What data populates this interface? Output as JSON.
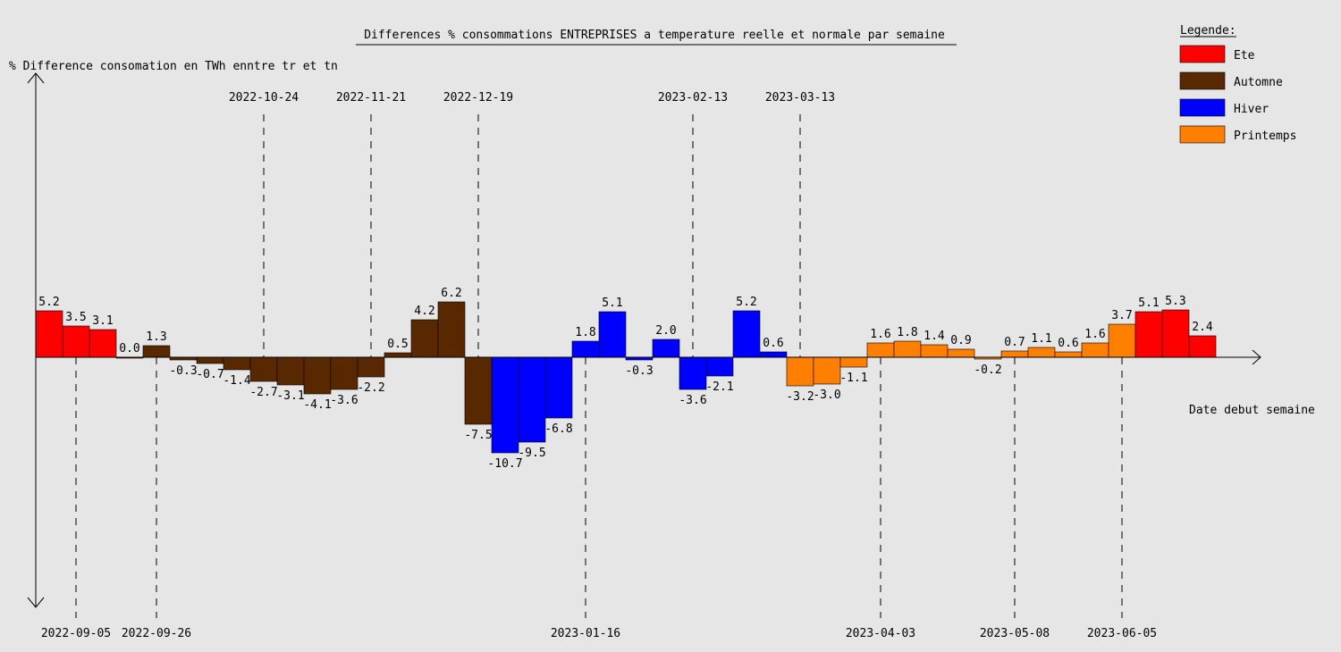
{
  "chart_data": {
    "type": "bar",
    "title": "Differences % consommations ENTREPRISES a temperature reelle et normale par semaine",
    "ylabel": "% Difference consomation en TWh enntre tr et tn",
    "xlabel": "Date debut semaine",
    "ylim": [
      -28,
      28
    ],
    "legend": {
      "title": "Legende:",
      "position": "top-right",
      "entries": [
        {
          "name": "Ete",
          "color": "#ff0000"
        },
        {
          "name": "Automne",
          "color": "#582900"
        },
        {
          "name": "Hiver",
          "color": "#0000ff"
        },
        {
          "name": "Printemps",
          "color": "#ff7f00"
        }
      ]
    },
    "season_colors": {
      "Ete": "#ff0000",
      "Automne": "#582900",
      "Hiver": "#0000ff",
      "Printemps": "#ff7f00"
    },
    "values": [
      5.2,
      3.5,
      3.1,
      0.0,
      1.3,
      -0.3,
      -0.7,
      -1.4,
      -2.7,
      -3.1,
      -4.1,
      -3.6,
      -2.2,
      0.5,
      4.2,
      6.2,
      -7.5,
      -10.7,
      -9.5,
      -6.8,
      1.8,
      5.1,
      -0.3,
      2.0,
      -3.6,
      -2.1,
      5.2,
      0.6,
      -3.2,
      -3.0,
      -1.1,
      1.6,
      1.8,
      1.4,
      0.9,
      -0.2,
      0.7,
      1.1,
      0.6,
      1.6,
      3.7,
      5.1,
      5.3,
      2.4
    ],
    "seasons": [
      "Ete",
      "Ete",
      "Ete",
      "Ete",
      "Automne",
      "Automne",
      "Automne",
      "Automne",
      "Automne",
      "Automne",
      "Automne",
      "Automne",
      "Automne",
      "Automne",
      "Automne",
      "Automne",
      "Automne",
      "Hiver",
      "Hiver",
      "Hiver",
      "Hiver",
      "Hiver",
      "Hiver",
      "Hiver",
      "Hiver",
      "Hiver",
      "Hiver",
      "Hiver",
      "Printemps",
      "Printemps",
      "Printemps",
      "Printemps",
      "Printemps",
      "Printemps",
      "Printemps",
      "Printemps",
      "Printemps",
      "Printemps",
      "Printemps",
      "Printemps",
      "Printemps",
      "Ete",
      "Ete",
      "Ete"
    ],
    "labels": [
      "5.2",
      "3.5",
      "3.1",
      "0.0",
      "1.3",
      "-0.3",
      "-0.7",
      "-1.4",
      "-2.7",
      "-3.1",
      "-4.1",
      "-3.6",
      "-2.2",
      "0.5",
      "4.2",
      "6.2",
      "-7.5",
      "-10.7",
      "-9.5",
      "-6.8",
      "1.8",
      "5.1",
      "-0.3",
      "2.0",
      "-3.6",
      "-2.1",
      "5.2",
      "0.6",
      "-3.2",
      "-3.0",
      "-1.1",
      "1.6",
      "1.8",
      "1.4",
      "0.9",
      "-0.2",
      "0.7",
      "1.1",
      "0.6",
      "1.6",
      "3.7",
      "5.1",
      "5.3",
      "2.4"
    ],
    "date_markers_top": [
      {
        "label": "2022-10-24",
        "index": 8.5
      },
      {
        "label": "2022-11-21",
        "index": 12.5
      },
      {
        "label": "2022-12-19",
        "index": 16.5
      },
      {
        "label": "2023-02-13",
        "index": 24.5
      },
      {
        "label": "2023-03-13",
        "index": 28.5
      }
    ],
    "date_markers_bottom": [
      {
        "label": "2022-09-05",
        "index": 1.5
      },
      {
        "label": "2022-09-26",
        "index": 4.5
      },
      {
        "label": "2023-01-16",
        "index": 20.5
      },
      {
        "label": "2023-04-03",
        "index": 31.5
      },
      {
        "label": "2023-05-08",
        "index": 36.5
      },
      {
        "label": "2023-06-05",
        "index": 40.5
      }
    ]
  }
}
